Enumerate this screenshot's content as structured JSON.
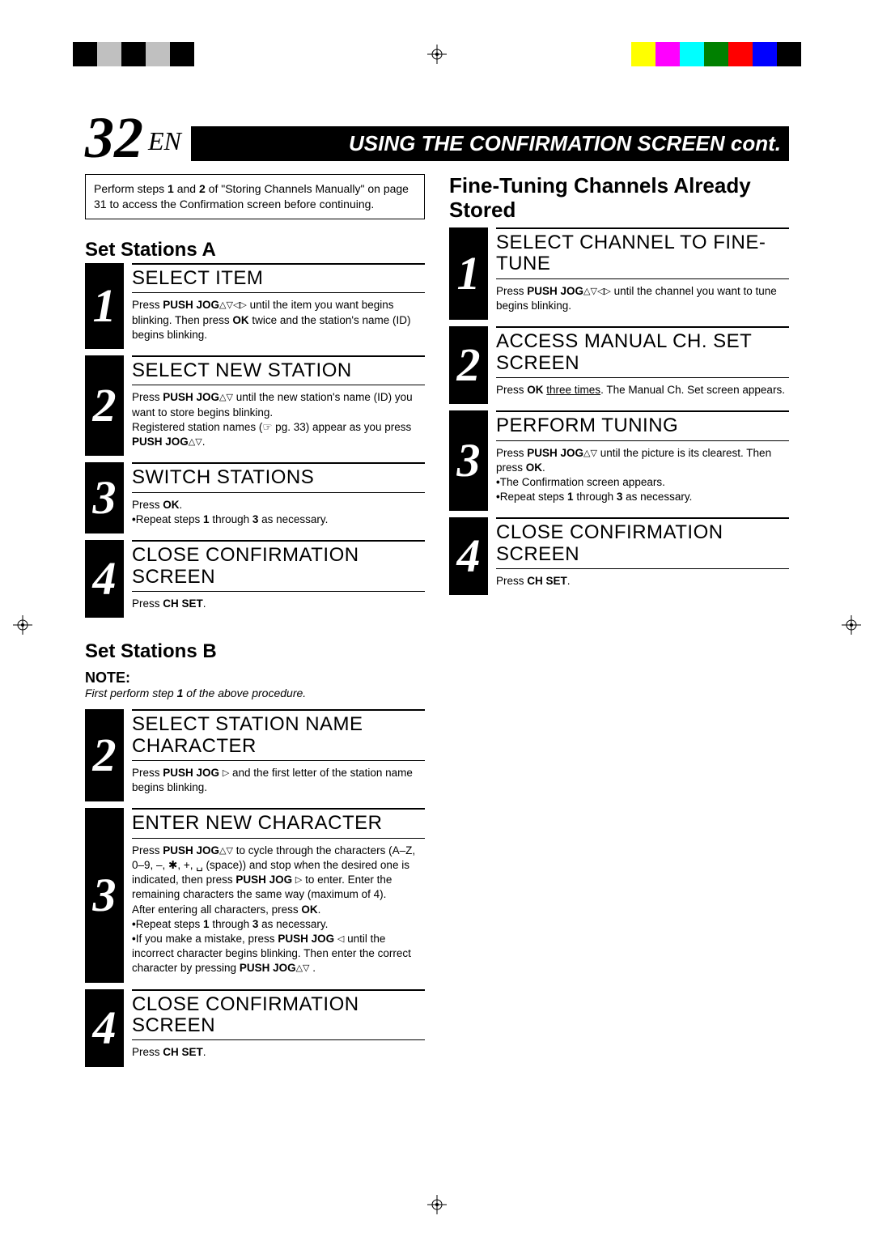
{
  "color_bar": {
    "left_swatches": [
      "#000000",
      "#c0c0c0",
      "#000000",
      "#c0c0c0",
      "#000000"
    ],
    "right_swatches": [
      "#ffff00",
      "#ff00ff",
      "#00ffff",
      "#008000",
      "#ff0000",
      "#0000ff",
      "#000000"
    ]
  },
  "header": {
    "page_number": "32",
    "lang": "EN",
    "title": "USING THE CONFIRMATION SCREEN cont."
  },
  "intro_box": "Perform steps <b>1</b> and <b>2</b> of \"Storing Channels Manually\" on page 31 to access the Confirmation screen before continuing.",
  "left": {
    "section_a_title": "Set Stations A",
    "steps_a": [
      {
        "n": "1",
        "title": "SELECT ITEM",
        "text": "Press <b>PUSH JOG</b><span class='tri'>&#9651;&#9661;&#9665;&#9655;</span> until the item you want begins blinking. Then press <b>OK</b> twice and the station's name (ID) begins blinking."
      },
      {
        "n": "2",
        "title": "SELECT NEW STATION",
        "text": "Press <b>PUSH JOG</b><span class='tri'>&#9651;&#9661;</span> until the new station's name (ID) you want to store begins blinking.<br>Registered station names (☞ pg. 33) appear as you press <b>PUSH JOG</b><span class='tri'>&#9651;&#9661;</span>."
      },
      {
        "n": "3",
        "title": "SWITCH STATIONS",
        "text": "Press <b>OK</b>.<ul><li>Repeat steps <b>1</b> through <b>3</b> as necessary.</li></ul>"
      },
      {
        "n": "4",
        "title": "CLOSE CONFIRMATION SCREEN",
        "text": "Press <b>CH SET</b>."
      }
    ],
    "section_b_title": "Set Stations B",
    "note_label": "NOTE:",
    "note_text": "First perform step <b>1</b> of the above procedure.",
    "steps_b": [
      {
        "n": "2",
        "title": "SELECT STATION NAME CHARACTER",
        "text": "Press <b>PUSH JOG</b> <span class='tri'>&#9655;</span> and the first letter of the station name begins blinking."
      },
      {
        "n": "3",
        "title": "ENTER NEW CHARACTER",
        "text": "Press <b>PUSH JOG</b><span class='tri'>&#9651;&#9661;</span> to cycle through the characters (A–Z, 0–9, –, ✱, +, ␣ (space)) and stop when the desired one is indicated, then press <b>PUSH JOG</b> <span class='tri'>&#9655;</span> to enter. Enter the remaining characters the same way (maximum of 4).<br>After entering all characters, press <b>OK</b>.<ul><li>Repeat steps <b>1</b> through <b>3</b> as necessary.</li><li>If you make a mistake, press <b>PUSH JOG</b> <span class='tri'>&#9665;</span> until the incorrect character begins blinking. Then enter the correct character by pressing <b>PUSH JOG</b><span class='tri'>&#9651;&#9661;</span> .</li></ul>"
      },
      {
        "n": "4",
        "title": "CLOSE CONFIRMATION SCREEN",
        "text": "Press <b>CH SET</b>."
      }
    ]
  },
  "right": {
    "section_title": "Fine-Tuning Channels Already Stored",
    "steps": [
      {
        "n": "1",
        "title": "SELECT CHANNEL TO FINE-TUNE",
        "text": "Press <b>PUSH JOG</b><span class='tri'>&#9651;&#9661;&#9665;&#9655;</span> until the channel you want to tune begins blinking."
      },
      {
        "n": "2",
        "title": "ACCESS MANUAL CH. SET SCREEN",
        "text": "Press <b>OK</b> <span class='underline'>three times</span>. The Manual Ch. Set screen appears."
      },
      {
        "n": "3",
        "title": "PERFORM TUNING",
        "text": "Press <b>PUSH JOG</b><span class='tri'>&#9651;&#9661;</span> until the picture is its clearest. Then press <b>OK</b>.<ul><li>The Confirmation screen appears.</li><li>Repeat steps <b>1</b> through <b>3</b> as necessary.</li></ul>"
      },
      {
        "n": "4",
        "title": "CLOSE CONFIRMATION SCREEN",
        "text": "Press <b>CH SET</b>."
      }
    ]
  }
}
